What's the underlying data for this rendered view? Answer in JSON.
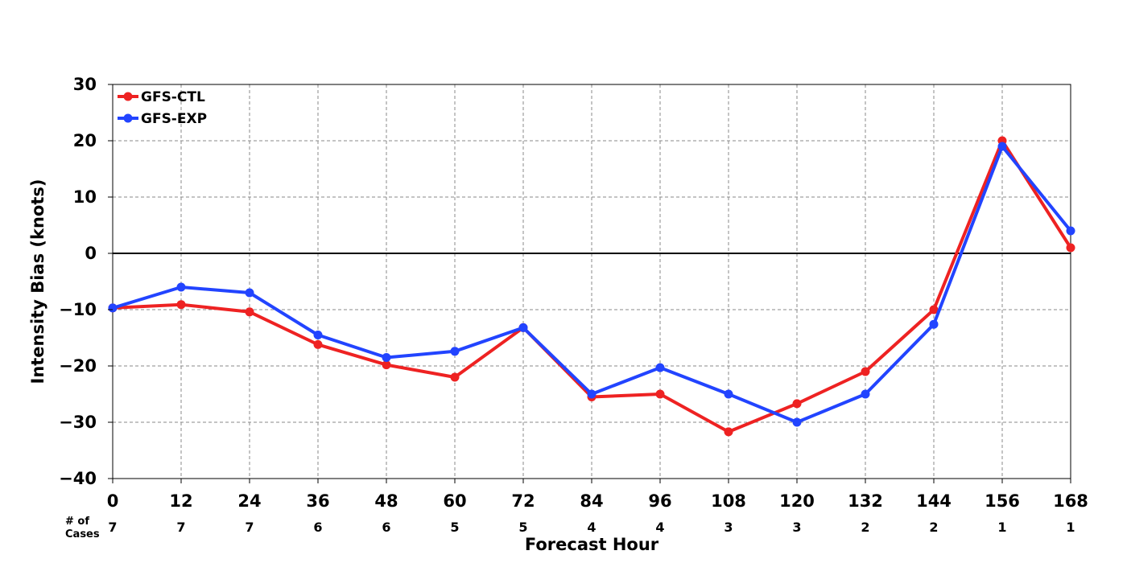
{
  "chart_data": {
    "type": "line",
    "title": "",
    "xlabel": "Forecast Hour",
    "ylabel": "Intensity Bias (knots)",
    "x": [
      0,
      12,
      24,
      36,
      48,
      60,
      72,
      84,
      96,
      108,
      120,
      132,
      144,
      156,
      168
    ],
    "xlim": [
      0,
      168
    ],
    "ylim": [
      -40,
      30
    ],
    "yticks": [
      -40,
      -30,
      -20,
      -10,
      0,
      10,
      20,
      30
    ],
    "ytick_labels": [
      "−40",
      "−30",
      "−20",
      "−10",
      "0",
      "10",
      "20",
      "30"
    ],
    "grid": true,
    "zero_line": true,
    "legend_position": "top-left",
    "cases_title_line1": "# of",
    "cases_title_line2": "Cases",
    "cases": [
      7,
      7,
      7,
      6,
      6,
      5,
      5,
      4,
      4,
      3,
      3,
      2,
      2,
      1,
      1
    ],
    "series": [
      {
        "name": "GFS-CTL",
        "color": "#ee2222",
        "values": [
          -9.7,
          -9.1,
          -10.4,
          -16.2,
          -19.8,
          -22.0,
          -13.2,
          -25.5,
          -25.0,
          -31.7,
          -26.7,
          -21.0,
          -10.0,
          20.0,
          1.0
        ]
      },
      {
        "name": "GFS-EXP",
        "color": "#2244ff",
        "values": [
          -9.7,
          -6.0,
          -7.0,
          -14.5,
          -18.5,
          -17.4,
          -13.2,
          -25.0,
          -20.3,
          -25.0,
          -30.0,
          -25.0,
          -12.6,
          19.0,
          4.0
        ]
      }
    ]
  }
}
